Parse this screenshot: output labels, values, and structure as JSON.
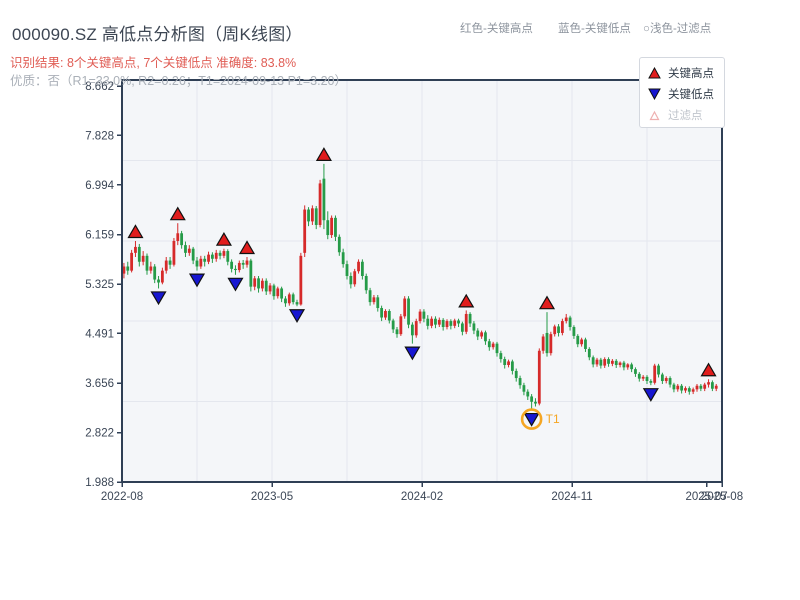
{
  "header": {
    "title": "000090.SZ 高低点分析图（周K线图）",
    "subtitle_result": "识别结果: 8个关键高点, 7个关键低点  准确度: 83.8%",
    "subtitle_quality": "优质：否（R1=33.0%, R2=0.26；T1=2024-09-13 P1=3.20）",
    "hints": [
      {
        "label": "红色-关键高点"
      },
      {
        "label": "蓝色-关键低点"
      },
      {
        "label": "○浅色-过滤点"
      }
    ]
  },
  "legend": {
    "items": [
      {
        "label": "关键高点",
        "marker": "up-triangle",
        "color": "#e11d1d"
      },
      {
        "label": "关键低点",
        "marker": "down-triangle",
        "color": "#1717d1"
      },
      {
        "label": "过滤点",
        "marker": "up-triangle-outline",
        "color": "#eeb0b0",
        "muted": true
      }
    ]
  },
  "colors": {
    "up": "#d62a2a",
    "down": "#259b48",
    "frame": "#2f3f55",
    "grid": "#e4e7ee",
    "plot_bg": "#f4f6f9",
    "tick_text": "#3b4656",
    "marker_high": "#e11d1d",
    "marker_low": "#1717d1",
    "marker_edge": "#111111",
    "t1_ring": "#f5a623"
  },
  "chart_data": {
    "type": "candlestick",
    "symbol": "000090.SZ",
    "period": "weekly",
    "title": "000090.SZ 高低点分析图（周K线图）",
    "ylim": [
      1.988,
      8.662
    ],
    "y_ticks": [
      "8.662",
      "7.828",
      "6.994",
      "6.159",
      "5.325",
      "4.491",
      "3.656",
      "2.822",
      "1.988"
    ],
    "x_ticks": [
      {
        "label": "2022-08",
        "week": 0
      },
      {
        "label": "2023-05",
        "week": 39
      },
      {
        "label": "2024-02",
        "week": 78
      },
      {
        "label": "2024-11",
        "week": 117
      },
      {
        "label": "2025-07",
        "week": 152
      },
      {
        "label": "2025-08",
        "week": 156
      }
    ],
    "weeks_total": 156,
    "candles": [
      [
        5.5,
        5.68,
        5.42,
        5.62
      ],
      [
        5.62,
        5.7,
        5.48,
        5.55
      ],
      [
        5.55,
        5.9,
        5.52,
        5.85
      ],
      [
        5.85,
        6.05,
        5.78,
        5.95
      ],
      [
        5.95,
        6.0,
        5.62,
        5.7
      ],
      [
        5.7,
        5.88,
        5.64,
        5.8
      ],
      [
        5.8,
        5.84,
        5.48,
        5.55
      ],
      [
        5.55,
        5.7,
        5.5,
        5.62
      ],
      [
        5.62,
        5.66,
        5.34,
        5.4
      ],
      [
        5.4,
        5.46,
        5.25,
        5.35
      ],
      [
        5.35,
        5.6,
        5.32,
        5.55
      ],
      [
        5.55,
        5.78,
        5.5,
        5.72
      ],
      [
        5.72,
        5.78,
        5.58,
        5.65
      ],
      [
        5.65,
        6.1,
        5.62,
        6.05
      ],
      [
        6.05,
        6.35,
        5.98,
        6.18
      ],
      [
        6.18,
        6.22,
        5.92,
        5.98
      ],
      [
        5.98,
        6.04,
        5.78,
        5.85
      ],
      [
        5.85,
        5.98,
        5.8,
        5.92
      ],
      [
        5.92,
        5.95,
        5.66,
        5.72
      ],
      [
        5.72,
        5.78,
        5.55,
        5.62
      ],
      [
        5.62,
        5.8,
        5.58,
        5.75
      ],
      [
        5.75,
        5.8,
        5.62,
        5.7
      ],
      [
        5.7,
        5.87,
        5.66,
        5.82
      ],
      [
        5.82,
        5.86,
        5.68,
        5.75
      ],
      [
        5.75,
        5.9,
        5.7,
        5.85
      ],
      [
        5.85,
        5.89,
        5.74,
        5.8
      ],
      [
        5.8,
        5.92,
        5.76,
        5.88
      ],
      [
        5.88,
        5.91,
        5.64,
        5.7
      ],
      [
        5.7,
        5.74,
        5.52,
        5.58
      ],
      [
        5.58,
        5.64,
        5.48,
        5.56
      ],
      [
        5.56,
        5.72,
        5.52,
        5.68
      ],
      [
        5.68,
        5.73,
        5.58,
        5.65
      ],
      [
        5.65,
        5.78,
        5.6,
        5.72
      ],
      [
        5.72,
        5.75,
        5.2,
        5.28
      ],
      [
        5.28,
        5.46,
        5.22,
        5.42
      ],
      [
        5.42,
        5.46,
        5.18,
        5.25
      ],
      [
        5.25,
        5.42,
        5.2,
        5.38
      ],
      [
        5.38,
        5.42,
        5.14,
        5.2
      ],
      [
        5.2,
        5.34,
        5.15,
        5.3
      ],
      [
        5.3,
        5.33,
        5.06,
        5.12
      ],
      [
        5.12,
        5.28,
        5.08,
        5.25
      ],
      [
        5.25,
        5.28,
        5.02,
        5.08
      ],
      [
        5.08,
        5.12,
        4.94,
        5.0
      ],
      [
        5.0,
        5.18,
        4.96,
        5.15
      ],
      [
        5.15,
        5.18,
        4.98,
        5.02
      ],
      [
        5.02,
        5.06,
        4.95,
        4.98
      ],
      [
        4.98,
        5.85,
        4.96,
        5.8
      ],
      [
        5.85,
        6.65,
        5.78,
        6.58
      ],
      [
        6.58,
        6.62,
        6.3,
        6.38
      ],
      [
        6.38,
        6.65,
        6.32,
        6.6
      ],
      [
        6.6,
        6.64,
        6.25,
        6.32
      ],
      [
        6.32,
        7.08,
        6.28,
        7.02
      ],
      [
        7.1,
        7.35,
        6.25,
        6.4
      ],
      [
        6.4,
        6.55,
        6.08,
        6.15
      ],
      [
        6.15,
        6.48,
        6.1,
        6.44
      ],
      [
        6.44,
        6.48,
        6.05,
        6.12
      ],
      [
        6.12,
        6.16,
        5.8,
        5.86
      ],
      [
        5.86,
        5.92,
        5.6,
        5.66
      ],
      [
        5.66,
        5.72,
        5.4,
        5.46
      ],
      [
        5.46,
        5.52,
        5.25,
        5.32
      ],
      [
        5.32,
        5.58,
        5.28,
        5.54
      ],
      [
        5.54,
        5.74,
        5.5,
        5.7
      ],
      [
        5.7,
        5.74,
        5.4,
        5.46
      ],
      [
        5.46,
        5.5,
        5.16,
        5.22
      ],
      [
        5.22,
        5.26,
        4.96,
        5.02
      ],
      [
        5.02,
        5.14,
        4.98,
        5.1
      ],
      [
        5.1,
        5.14,
        4.86,
        4.92
      ],
      [
        4.92,
        4.96,
        4.7,
        4.76
      ],
      [
        4.76,
        4.9,
        4.72,
        4.87
      ],
      [
        4.87,
        4.9,
        4.66,
        4.71
      ],
      [
        4.71,
        4.74,
        4.5,
        4.56
      ],
      [
        4.56,
        4.6,
        4.42,
        4.48
      ],
      [
        4.48,
        4.82,
        4.45,
        4.78
      ],
      [
        4.78,
        5.12,
        4.74,
        5.08
      ],
      [
        5.08,
        5.12,
        4.58,
        4.64
      ],
      [
        4.64,
        4.68,
        4.32,
        4.46
      ],
      [
        4.46,
        4.74,
        4.42,
        4.7
      ],
      [
        4.7,
        4.9,
        4.66,
        4.86
      ],
      [
        4.86,
        4.9,
        4.68,
        4.74
      ],
      [
        4.74,
        4.8,
        4.56,
        4.62
      ],
      [
        4.62,
        4.78,
        4.58,
        4.74
      ],
      [
        4.74,
        4.78,
        4.58,
        4.64
      ],
      [
        4.64,
        4.76,
        4.6,
        4.72
      ],
      [
        4.72,
        4.75,
        4.54,
        4.6
      ],
      [
        4.6,
        4.73,
        4.56,
        4.7
      ],
      [
        4.7,
        4.73,
        4.56,
        4.62
      ],
      [
        4.62,
        4.74,
        4.58,
        4.71
      ],
      [
        4.71,
        4.74,
        4.6,
        4.66
      ],
      [
        4.66,
        4.69,
        4.46,
        4.52
      ],
      [
        4.52,
        4.88,
        4.48,
        4.82
      ],
      [
        4.82,
        4.85,
        4.6,
        4.66
      ],
      [
        4.66,
        4.7,
        4.48,
        4.54
      ],
      [
        4.54,
        4.58,
        4.38,
        4.44
      ],
      [
        4.44,
        4.54,
        4.4,
        4.51
      ],
      [
        4.51,
        4.54,
        4.3,
        4.36
      ],
      [
        4.36,
        4.4,
        4.2,
        4.26
      ],
      [
        4.26,
        4.35,
        4.22,
        4.32
      ],
      [
        4.32,
        4.35,
        4.1,
        4.16
      ],
      [
        4.16,
        4.2,
        4.0,
        4.06
      ],
      [
        4.06,
        4.1,
        3.9,
        3.96
      ],
      [
        3.96,
        4.05,
        3.92,
        4.02
      ],
      [
        4.02,
        4.05,
        3.8,
        3.86
      ],
      [
        3.86,
        3.9,
        3.68,
        3.74
      ],
      [
        3.74,
        3.78,
        3.56,
        3.62
      ],
      [
        3.62,
        3.66,
        3.45,
        3.51
      ],
      [
        3.51,
        3.55,
        3.37,
        3.43
      ],
      [
        3.43,
        3.47,
        3.2,
        3.34
      ],
      [
        3.34,
        3.4,
        3.26,
        3.31
      ],
      [
        3.31,
        4.24,
        3.28,
        4.2
      ],
      [
        4.2,
        4.48,
        4.15,
        4.44
      ],
      [
        4.5,
        4.85,
        4.1,
        4.16
      ],
      [
        4.16,
        4.52,
        4.12,
        4.48
      ],
      [
        4.48,
        4.64,
        4.44,
        4.61
      ],
      [
        4.61,
        4.65,
        4.44,
        4.5
      ],
      [
        4.5,
        4.74,
        4.46,
        4.7
      ],
      [
        4.7,
        4.82,
        4.66,
        4.76
      ],
      [
        4.76,
        4.79,
        4.54,
        4.6
      ],
      [
        4.6,
        4.63,
        4.4,
        4.45
      ],
      [
        4.45,
        4.48,
        4.26,
        4.31
      ],
      [
        4.31,
        4.42,
        4.27,
        4.39
      ],
      [
        4.39,
        4.42,
        4.18,
        4.23
      ],
      [
        4.23,
        4.26,
        4.04,
        4.09
      ],
      [
        4.09,
        4.12,
        3.92,
        3.97
      ],
      [
        3.97,
        4.08,
        3.93,
        4.05
      ],
      [
        4.05,
        4.08,
        3.9,
        3.95
      ],
      [
        3.95,
        4.09,
        3.91,
        4.06
      ],
      [
        4.06,
        4.09,
        3.93,
        3.98
      ],
      [
        3.98,
        4.06,
        3.94,
        4.03
      ],
      [
        4.03,
        4.06,
        3.91,
        3.96
      ],
      [
        3.96,
        4.02,
        3.92,
        4.0
      ],
      [
        4.0,
        4.03,
        3.87,
        3.92
      ],
      [
        3.92,
        3.99,
        3.88,
        3.97
      ],
      [
        3.97,
        4.0,
        3.84,
        3.89
      ],
      [
        3.89,
        3.92,
        3.76,
        3.81
      ],
      [
        3.81,
        3.84,
        3.68,
        3.73
      ],
      [
        3.73,
        3.79,
        3.69,
        3.76
      ],
      [
        3.76,
        3.79,
        3.64,
        3.69
      ],
      [
        3.69,
        3.72,
        3.62,
        3.66
      ],
      [
        3.66,
        3.98,
        3.63,
        3.95
      ],
      [
        3.95,
        3.98,
        3.75,
        3.8
      ],
      [
        3.8,
        3.83,
        3.64,
        3.69
      ],
      [
        3.69,
        3.77,
        3.65,
        3.74
      ],
      [
        3.74,
        3.77,
        3.58,
        3.63
      ],
      [
        3.63,
        3.66,
        3.5,
        3.55
      ],
      [
        3.55,
        3.64,
        3.51,
        3.61
      ],
      [
        3.61,
        3.64,
        3.48,
        3.53
      ],
      [
        3.53,
        3.6,
        3.49,
        3.57
      ],
      [
        3.57,
        3.6,
        3.46,
        3.51
      ],
      [
        3.51,
        3.58,
        3.47,
        3.55
      ],
      [
        3.55,
        3.64,
        3.51,
        3.61
      ],
      [
        3.61,
        3.64,
        3.52,
        3.56
      ],
      [
        3.56,
        3.66,
        3.52,
        3.63
      ],
      [
        3.63,
        3.72,
        3.58,
        3.67
      ],
      [
        3.67,
        3.7,
        3.52,
        3.56
      ],
      [
        3.56,
        3.64,
        3.52,
        3.61
      ]
    ],
    "key_highs": [
      {
        "i": 3,
        "price": 6.05
      },
      {
        "i": 14,
        "price": 6.35
      },
      {
        "i": 26,
        "price": 5.92
      },
      {
        "i": 32,
        "price": 5.78
      },
      {
        "i": 52,
        "price": 7.35
      },
      {
        "i": 89,
        "price": 4.88
      },
      {
        "i": 110,
        "price": 4.85
      },
      {
        "i": 152,
        "price": 3.72
      }
    ],
    "key_lows": [
      {
        "i": 9,
        "price": 5.25
      },
      {
        "i": 19,
        "price": 5.55
      },
      {
        "i": 29,
        "price": 5.48
      },
      {
        "i": 45,
        "price": 4.95
      },
      {
        "i": 75,
        "price": 4.32
      },
      {
        "i": 106,
        "price": 3.2
      },
      {
        "i": 137,
        "price": 3.62
      }
    ],
    "t1_marker": {
      "i": 106,
      "price": 3.2,
      "label": "T1",
      "date": "2024-09-13"
    }
  }
}
